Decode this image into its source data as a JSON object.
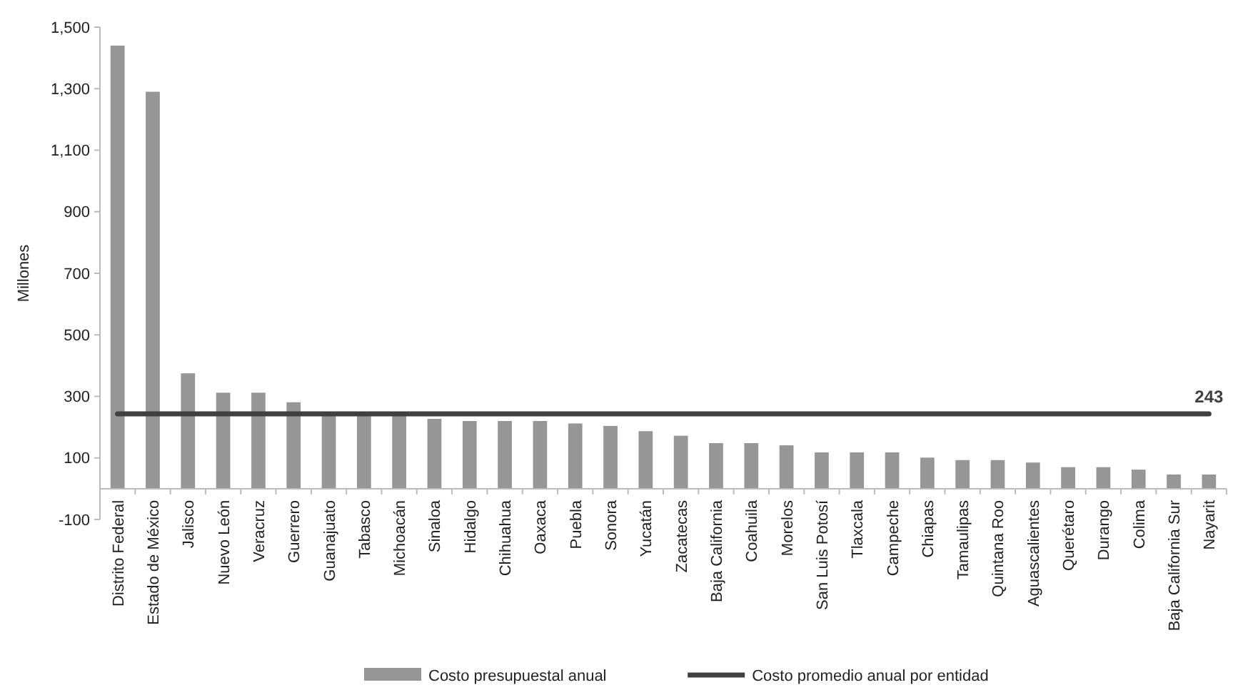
{
  "chart_data": {
    "type": "bar",
    "ylabel": "Millones",
    "categories": [
      "Distrito Federal",
      "Estado de México",
      "Jalisco",
      "Nuevo León",
      "Veracruz",
      "Guerrero",
      "Guanajuato",
      "Tabasco",
      "Michoacán",
      "Sinaloa",
      "Hidalgo",
      "Chihuahua",
      "Oaxaca",
      "Puebla",
      "Sonora",
      "Yucatán",
      "Zacatecas",
      "Baja California",
      "Coahuila",
      "Morelos",
      "San Luis Potosí",
      "Tlaxcala",
      "Campeche",
      "Chiapas",
      "Tamaulipas",
      "Quintana Roo",
      "Aguascalientes",
      "Querétaro",
      "Durango",
      "Colima",
      "Baja California Sur",
      "Nayarit"
    ],
    "series": [
      {
        "name": "Costo presupuestal anual",
        "color": "#969696",
        "values": [
          1440,
          1290,
          375,
          312,
          312,
          281,
          240,
          238,
          240,
          227,
          220,
          220,
          220,
          212,
          204,
          187,
          172,
          148,
          148,
          141,
          118,
          118,
          118,
          101,
          93,
          93,
          85,
          70,
          70,
          62,
          46,
          46
        ]
      },
      {
        "type": "line",
        "name": "Costo promedio anual por entidad",
        "color": "#404040",
        "values": [
          243,
          243,
          243,
          243,
          243,
          243,
          243,
          243,
          243,
          243,
          243,
          243,
          243,
          243,
          243,
          243,
          243,
          243,
          243,
          243,
          243,
          243,
          243,
          243,
          243,
          243,
          243,
          243,
          243,
          243,
          243,
          243
        ],
        "value_labels": [
          null,
          null,
          null,
          null,
          null,
          null,
          null,
          null,
          null,
          null,
          null,
          null,
          null,
          null,
          null,
          null,
          null,
          null,
          null,
          null,
          null,
          null,
          null,
          null,
          null,
          null,
          null,
          null,
          null,
          null,
          null,
          "243"
        ]
      }
    ],
    "ylim": [
      -100,
      1500
    ],
    "yticks": [
      {
        "value": -100,
        "label": "-100"
      },
      {
        "value": 100,
        "label": "100"
      },
      {
        "value": 300,
        "label": "300"
      },
      {
        "value": 500,
        "label": "500"
      },
      {
        "value": 700,
        "label": "700"
      },
      {
        "value": 900,
        "label": "900"
      },
      {
        "value": 1100,
        "label": "1,100"
      },
      {
        "value": 1300,
        "label": "1,300"
      },
      {
        "value": 1500,
        "label": "1,500"
      }
    ],
    "grid": false,
    "legend": "bottom"
  }
}
